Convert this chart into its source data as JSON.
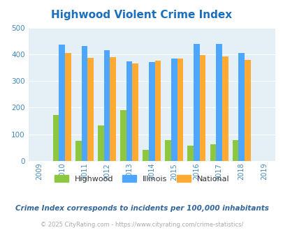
{
  "title": "Highwood Violent Crime Index",
  "all_years": [
    2009,
    2010,
    2011,
    2012,
    2013,
    2014,
    2015,
    2016,
    2017,
    2018,
    2019
  ],
  "data_years": [
    2010,
    2011,
    2012,
    2013,
    2014,
    2015,
    2016,
    2017,
    2018
  ],
  "highwood": [
    172,
    76,
    132,
    190,
    42,
    78,
    58,
    62,
    78
  ],
  "illinois": [
    435,
    430,
    415,
    374,
    370,
    383,
    440,
    438,
    406
  ],
  "national": [
    404,
    387,
    388,
    367,
    377,
    383,
    397,
    393,
    380
  ],
  "ylim": [
    0,
    500
  ],
  "yticks": [
    0,
    100,
    200,
    300,
    400,
    500
  ],
  "color_highwood": "#8dc63f",
  "color_illinois": "#4da6ff",
  "color_national": "#ffaa33",
  "background_color": "#e4f0f6",
  "title_color": "#1a6fbf",
  "title_fontsize": 11,
  "tick_label_color": "#4488bb",
  "subtitle": "Crime Index corresponds to incidents per 100,000 inhabitants",
  "footer": "© 2025 CityRating.com - https://www.cityrating.com/crime-statistics/",
  "legend_labels": [
    "Highwood",
    "Illinois",
    "National"
  ],
  "bar_width": 0.27
}
